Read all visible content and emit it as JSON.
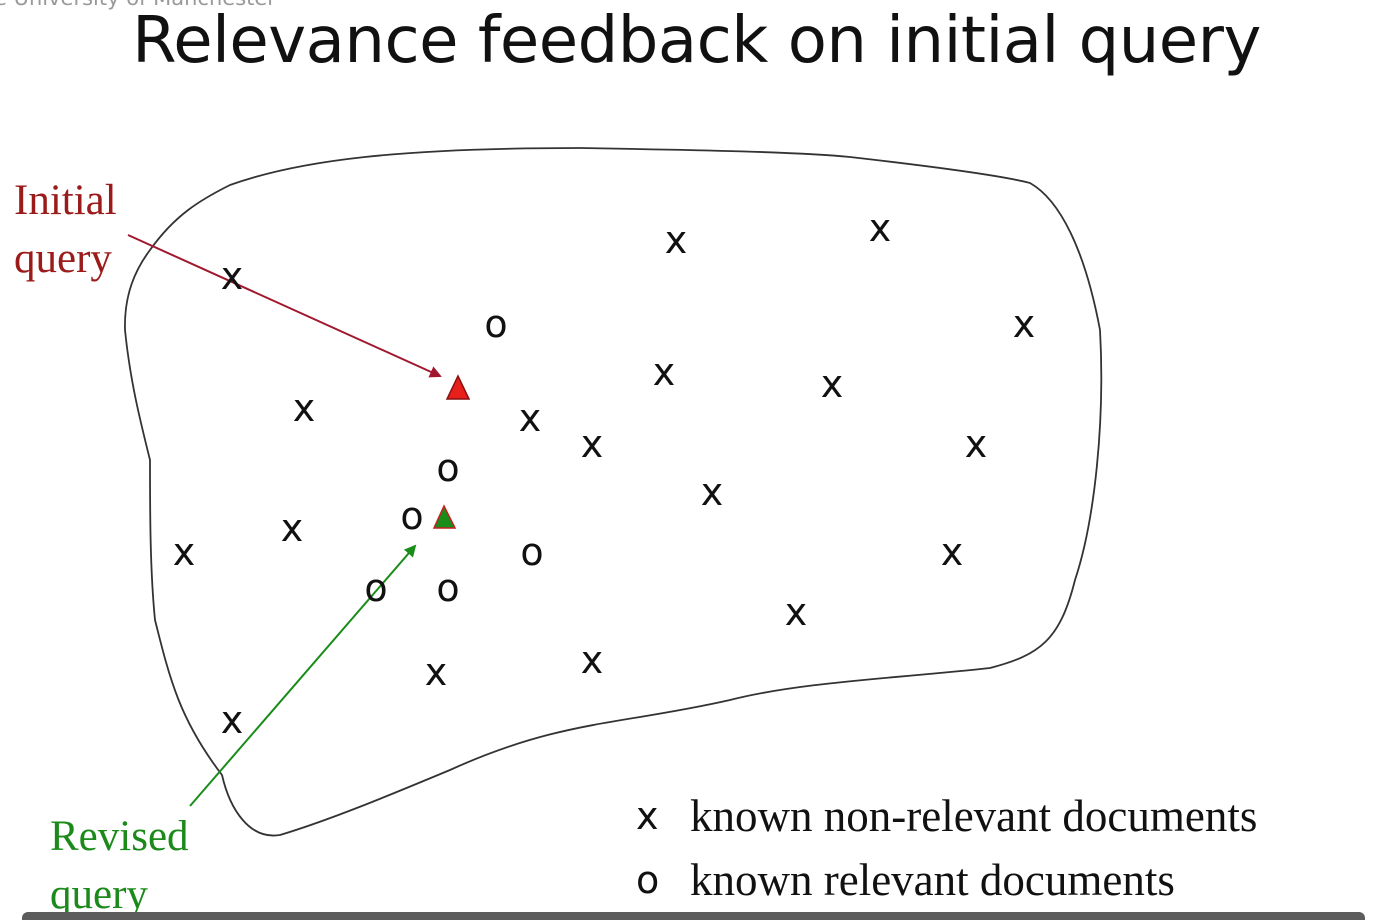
{
  "header": {
    "institution": "e University of Manchester"
  },
  "slide": {
    "title": "Relevance feedback on initial query",
    "initial_query_label": [
      "Initial",
      "query"
    ],
    "revised_query_label": [
      "Revised",
      "query"
    ],
    "legend": [
      {
        "symbol": "x",
        "text": "known non-relevant documents"
      },
      {
        "symbol": "o",
        "text": "known relevant documents"
      }
    ]
  },
  "colors": {
    "initial": "#9b1b1b",
    "revised": "#1b8a1b",
    "initial_marker": "#e8201c",
    "revised_marker": "#1a8c1a"
  },
  "marker_symbols": {
    "non_relevant": "x",
    "relevant": "o"
  },
  "icons": [
    "initial-query-triangle-icon",
    "revised-query-triangle-icon",
    "arrow-icon"
  ]
}
